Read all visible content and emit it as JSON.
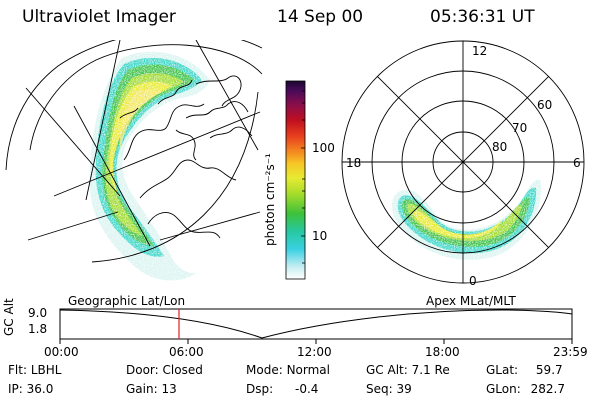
{
  "header": {
    "instrument": "Ultraviolet Imager",
    "date": "14 Sep 00",
    "time": "05:36:31 UT"
  },
  "geo_panel": {
    "label": "Geographic Lat/Lon"
  },
  "apex_panel": {
    "label": "Apex  MLat/MLT",
    "mlt_labels": {
      "top": "12",
      "left": "18",
      "right": "6",
      "bottom": "0"
    },
    "lat_labels": [
      "60",
      "70",
      "80"
    ]
  },
  "colorbar": {
    "unit_label": "photon cm⁻²s⁻¹",
    "tick_labels": [
      "100",
      "10"
    ],
    "scale": "log",
    "colors": [
      "#ffffff",
      "#c9eef2",
      "#3ad1e3",
      "#27c8a2",
      "#3ec13a",
      "#a7dc2a",
      "#e7ea32",
      "#f6c828",
      "#f48c20",
      "#e8401f",
      "#c0101f",
      "#8a0e4a",
      "#4a0a5a",
      "#1a0830"
    ]
  },
  "altitude_plot": {
    "axis_title": "GC Alt",
    "y_ticks": [
      "9.0",
      "1.8"
    ],
    "x_ticks": [
      "00:00",
      "06:00",
      "12:00",
      "18:00",
      "23:59"
    ],
    "current_time_marker": "05:36"
  },
  "status": {
    "flt_label": "Flt:",
    "flt_value": "LBHL",
    "ip_label": "IP:",
    "ip_value": "36.0",
    "door_label": "Door:",
    "door_value": "Closed",
    "gain_label": "Gain:",
    "gain_value": "13",
    "mode_label": "Mode:",
    "mode_value": "Normal",
    "dsp_label": "Dsp:",
    "dsp_value": "-0.4",
    "gcalt_label": "GC Alt:",
    "gcalt_value": "7.1 Re",
    "seq_label": "Seq:",
    "seq_value": "39",
    "glat_label": "GLat:",
    "glat_value": "59.7",
    "glon_label": "GLon:",
    "glon_value": "282.7"
  }
}
